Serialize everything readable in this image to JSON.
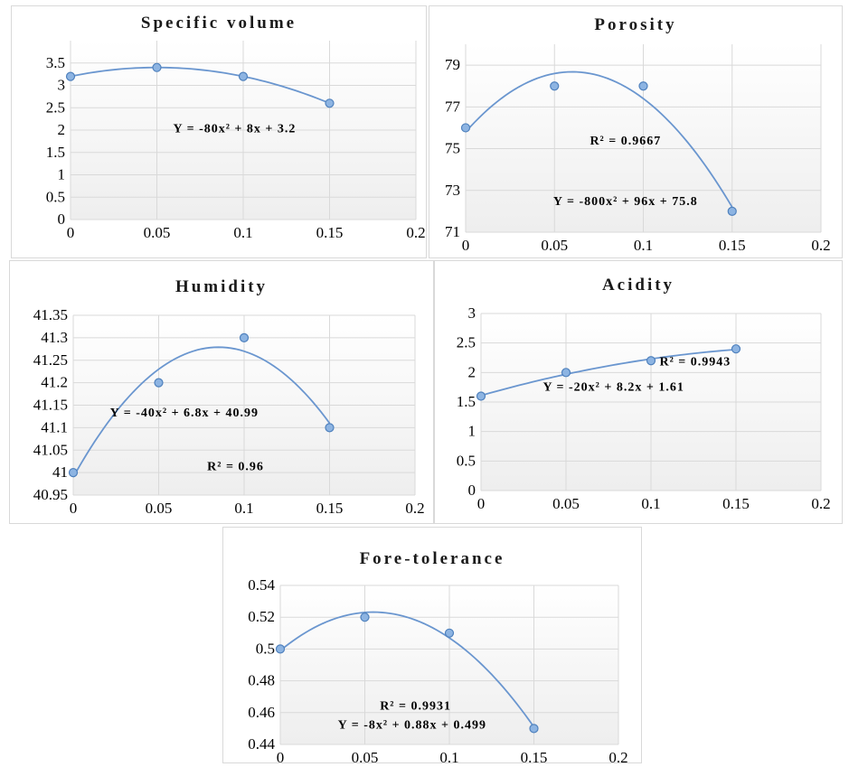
{
  "colors": {
    "curve": "#6a96cf",
    "marker_fill": "#8db4e2",
    "marker_stroke": "#4f81bd",
    "grid": "#d9d9d9",
    "plot_bg_top": "#ffffff",
    "plot_bg_bottom": "#eeeeee"
  },
  "chart_data": [
    {
      "id": "specific-volume",
      "type": "scatter",
      "title": "Specific volume",
      "x": [
        0,
        0.05,
        0.1,
        0.15
      ],
      "y": [
        3.2,
        3.4,
        3.2,
        2.6
      ],
      "xlim": [
        0,
        0.2
      ],
      "ylim": [
        0,
        4
      ],
      "xticks": [
        0,
        0.05,
        0.1,
        0.15,
        0.2
      ],
      "xtick_labels": [
        "0",
        "0.05",
        "0.1",
        "0.15",
        "0.2"
      ],
      "yticks": [
        0,
        0.5,
        1,
        1.5,
        2,
        2.5,
        3,
        3.5
      ],
      "ytick_labels": [
        "0",
        "0.5",
        "1",
        "1.5",
        "2",
        "2.5",
        "3",
        "3.5"
      ],
      "trendline": {
        "type": "polynomial",
        "coefficients": [
          -80,
          8,
          3.2
        ],
        "x_range": [
          0,
          0.15
        ]
      },
      "annotations": [
        "Y = -80x² + 8x + 3.2"
      ],
      "grid": true
    },
    {
      "id": "porosity",
      "type": "scatter",
      "title": "Porosity",
      "x": [
        0,
        0.05,
        0.1,
        0.15
      ],
      "y": [
        76,
        78,
        78,
        72
      ],
      "xlim": [
        0,
        0.2
      ],
      "ylim": [
        71,
        80
      ],
      "xticks": [
        0,
        0.05,
        0.1,
        0.15,
        0.2
      ],
      "xtick_labels": [
        "0",
        "0.05",
        "0.1",
        "0.15",
        "0.2"
      ],
      "yticks": [
        71,
        73,
        75,
        77,
        79
      ],
      "ytick_labels": [
        "71",
        "73",
        "75",
        "77",
        "79"
      ],
      "trendline": {
        "type": "polynomial",
        "coefficients": [
          -800,
          96,
          75.8
        ],
        "x_range": [
          0,
          0.15
        ]
      },
      "annotations": [
        "R² = 0.9667",
        "Y = -800x² + 96x + 75.8"
      ],
      "grid": true
    },
    {
      "id": "humidity",
      "type": "scatter",
      "title": "Humidity",
      "x": [
        0,
        0.05,
        0.1,
        0.15
      ],
      "y": [
        41,
        41.2,
        41.3,
        41.1
      ],
      "xlim": [
        0,
        0.2
      ],
      "ylim": [
        40.95,
        41.35
      ],
      "xticks": [
        0,
        0.05,
        0.1,
        0.15,
        0.2
      ],
      "xtick_labels": [
        "0",
        "0.05",
        "0.1",
        "0.15",
        "0.2"
      ],
      "yticks": [
        40.95,
        41,
        41.05,
        41.1,
        41.15,
        41.2,
        41.25,
        41.3,
        41.35
      ],
      "ytick_labels": [
        "40.95",
        "41",
        "41.05",
        "41.1",
        "41.15",
        "41.2",
        "41.25",
        "41.3",
        "41.35"
      ],
      "trendline": {
        "type": "polynomial",
        "coefficients": [
          -40,
          6.8,
          40.99
        ],
        "x_range": [
          0,
          0.15
        ]
      },
      "annotations": [
        "Y = -40x² + 6.8x + 40.99",
        "R² = 0.96"
      ],
      "grid": true
    },
    {
      "id": "acidity",
      "type": "scatter",
      "title": "Acidity",
      "x": [
        0,
        0.05,
        0.1,
        0.15
      ],
      "y": [
        1.6,
        2.0,
        2.2,
        2.4
      ],
      "xlim": [
        0,
        0.2
      ],
      "ylim": [
        0,
        3
      ],
      "xticks": [
        0,
        0.05,
        0.1,
        0.15,
        0.2
      ],
      "xtick_labels": [
        "0",
        "0.05",
        "0.1",
        "0.15",
        "0.2"
      ],
      "yticks": [
        0,
        0.5,
        1,
        1.5,
        2,
        2.5,
        3
      ],
      "ytick_labels": [
        "0",
        "0.5",
        "1",
        "1.5",
        "2",
        "2.5",
        "3"
      ],
      "trendline": {
        "type": "polynomial",
        "coefficients": [
          -20,
          8.2,
          1.61
        ],
        "x_range": [
          0,
          0.15
        ]
      },
      "annotations": [
        "R² = 0.9943",
        "Y = -20x² + 8.2x + 1.61"
      ],
      "grid": true
    },
    {
      "id": "fore-tolerance",
      "type": "scatter",
      "title": "Fore-tolerance",
      "x": [
        0,
        0.05,
        0.1,
        0.15
      ],
      "y": [
        0.5,
        0.52,
        0.51,
        0.45
      ],
      "xlim": [
        0,
        0.2
      ],
      "ylim": [
        0.44,
        0.54
      ],
      "xticks": [
        0,
        0.05,
        0.1,
        0.15,
        0.2
      ],
      "xtick_labels": [
        "0",
        "0.05",
        "0.1",
        "0.15",
        "0.2"
      ],
      "yticks": [
        0.44,
        0.46,
        0.48,
        0.5,
        0.52,
        0.54
      ],
      "ytick_labels": [
        "0.44",
        "0.46",
        "0.48",
        "0.5",
        "0.52",
        "0.54"
      ],
      "trendline": {
        "type": "polynomial",
        "coefficients": [
          -8,
          0.88,
          0.499
        ],
        "x_range": [
          0,
          0.15
        ]
      },
      "annotations": [
        "R² = 0.9931",
        "Y = -8x² + 0.88x + 0.499"
      ],
      "grid": true
    }
  ]
}
